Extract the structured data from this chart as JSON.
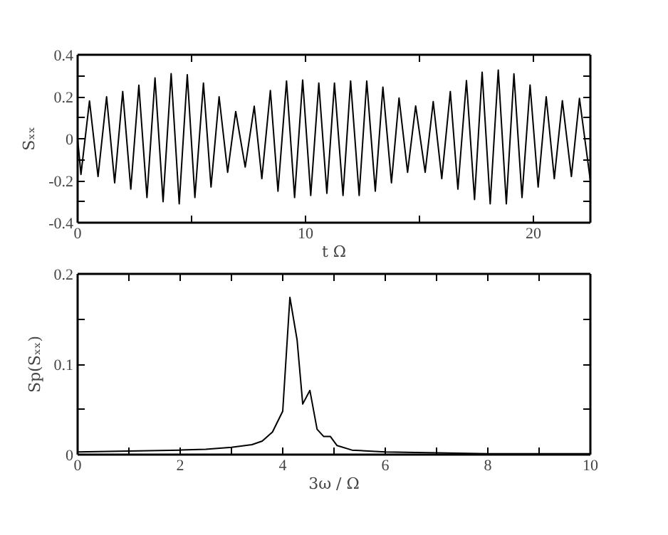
{
  "chart_data": [
    {
      "type": "line",
      "xlabel": "t Ω",
      "ylabel": "Sₓₓ",
      "xlim": [
        0,
        22.5
      ],
      "ylim": [
        -0.4,
        0.4
      ],
      "xticks": [
        0,
        {
          "value": 5,
          "label": null
        },
        10,
        {
          "value": 15,
          "label": null
        },
        20
      ],
      "yticks": [
        -0.4,
        {
          "value": -0.3,
          "label": null
        },
        -0.2,
        {
          "value": -0.1,
          "label": null
        },
        0,
        {
          "value": 0.1,
          "label": null
        },
        0.2,
        {
          "value": 0.3,
          "label": null
        },
        0.4
      ],
      "marker": "none",
      "line_style": "solid",
      "series": [
        {
          "color": "#000000",
          "x": [
            0,
            0.146,
            0.521,
            0.896,
            1.271,
            1.625,
            1.979,
            2.333,
            2.687,
            3.042,
            3.396,
            3.75,
            4.104,
            4.458,
            4.812,
            5.146,
            5.521,
            5.854,
            6.208,
            6.583,
            6.937,
            7.354,
            7.75,
            8.083,
            8.458,
            8.792,
            9.167,
            9.521,
            9.875,
            10.229,
            10.583,
            10.937,
            11.27,
            11.646,
            11.979,
            12.354,
            12.687,
            13.062,
            13.396,
            13.771,
            14.104,
            14.479,
            14.833,
            15.25,
            15.604,
            15.979,
            16.354,
            16.687,
            17.062,
            17.417,
            17.75,
            18.104,
            18.458,
            18.812,
            19.146,
            19.5,
            19.854,
            20.208,
            20.562,
            20.917,
            21.271,
            21.667,
            22.021,
            22.5
          ],
          "values": [
            0,
            -0.17,
            0.18,
            -0.18,
            0.2,
            -0.21,
            0.225,
            -0.24,
            0.255,
            -0.28,
            0.29,
            -0.3,
            0.31,
            -0.31,
            0.305,
            -0.28,
            0.265,
            -0.23,
            0.2,
            -0.16,
            0.13,
            -0.135,
            0.155,
            -0.19,
            0.23,
            -0.25,
            0.275,
            -0.28,
            0.28,
            -0.27,
            0.265,
            -0.26,
            0.265,
            -0.27,
            0.275,
            -0.27,
            0.275,
            -0.25,
            0.246,
            -0.21,
            0.194,
            -0.16,
            0.156,
            -0.16,
            0.177,
            -0.19,
            0.225,
            -0.24,
            0.277,
            -0.29,
            0.317,
            -0.31,
            0.327,
            -0.31,
            0.309,
            -0.28,
            0.256,
            -0.23,
            0.2,
            -0.19,
            0.181,
            -0.18,
            0.192,
            -0.2
          ]
        }
      ]
    },
    {
      "type": "line",
      "xlabel": "3ω / Ω",
      "ylabel": "Sp(Sₓₓ)",
      "xlim": [
        0,
        10
      ],
      "ylim": [
        0,
        0.2
      ],
      "xticks": [
        0,
        {
          "value": 1,
          "label": null
        },
        2,
        {
          "value": 3,
          "label": null
        },
        4,
        {
          "value": 5,
          "label": null
        },
        6,
        {
          "value": 7,
          "label": null
        },
        8,
        {
          "value": 9,
          "label": null
        },
        10
      ],
      "yticks": [
        0,
        {
          "value": 0.05,
          "label": null
        },
        0.1,
        {
          "value": 0.15,
          "label": null
        },
        0.2
      ],
      "marker": "none",
      "line_style": "solid",
      "series": [
        {
          "color": "#000000",
          "x": [
            0,
            1,
            2,
            2.5,
            3,
            3.4,
            3.6,
            3.8,
            4.0,
            4.14,
            4.28,
            4.39,
            4.53,
            4.67,
            4.8,
            4.93,
            5.06,
            5.35,
            6,
            7,
            8,
            9,
            10
          ],
          "values": [
            0.003,
            0.004,
            0.005,
            0.006,
            0.008,
            0.011,
            0.015,
            0.025,
            0.048,
            0.174,
            0.127,
            0.056,
            0.071,
            0.028,
            0.02,
            0.02,
            0.01,
            0.005,
            0.003,
            0.002,
            0.001,
            0.001,
            0.001
          ]
        }
      ]
    }
  ]
}
